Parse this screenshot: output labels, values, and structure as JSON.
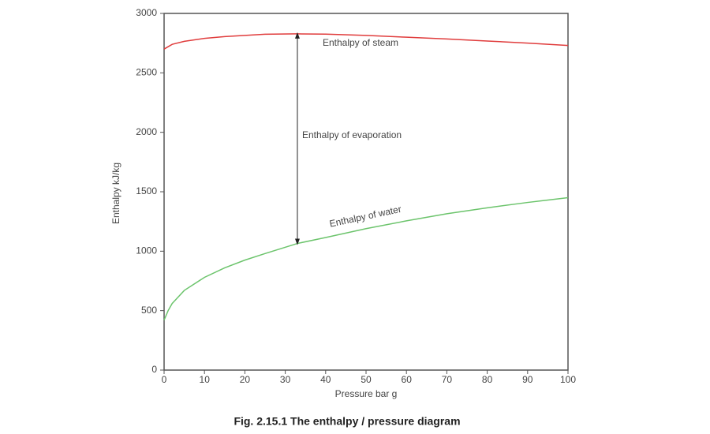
{
  "chart_data": {
    "type": "line",
    "title": "Fig. 2.15.1 The enthalpy / pressure diagram",
    "x_label": "Pressure bar g",
    "y_label": "Enthalpy kJ/kg",
    "x": [
      0,
      1,
      2,
      5,
      10,
      15,
      20,
      25,
      33,
      40,
      50,
      60,
      70,
      80,
      90,
      100
    ],
    "series": [
      {
        "name": "Enthalpy of steam",
        "color": "#e03c3c",
        "values": [
          2700,
          2720,
          2740,
          2765,
          2790,
          2805,
          2815,
          2825,
          2828,
          2826,
          2815,
          2800,
          2785,
          2768,
          2750,
          2730
        ]
      },
      {
        "name": "Enthalpy of water",
        "color": "#6cc46c",
        "values": [
          420,
          500,
          560,
          670,
          780,
          860,
          925,
          980,
          1065,
          1115,
          1190,
          1255,
          1315,
          1365,
          1410,
          1450
        ]
      }
    ],
    "annotations": [
      "Enthalpy of evaporation"
    ],
    "xlim": [
      0,
      100
    ],
    "xticks": [
      0,
      10,
      20,
      30,
      40,
      50,
      60,
      70,
      80,
      90,
      100
    ],
    "ylim": [
      0,
      3000
    ],
    "yticks": [
      0,
      500,
      1000,
      1500,
      2000,
      2500,
      3000
    ],
    "grid": false
  }
}
